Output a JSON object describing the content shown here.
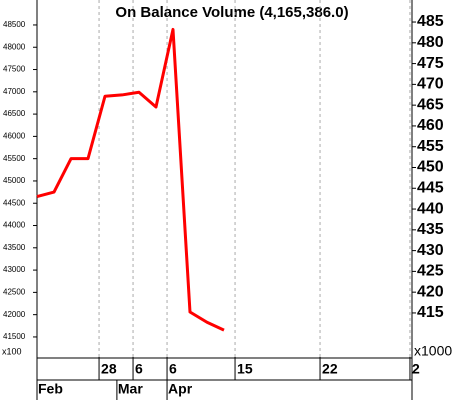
{
  "chart_data": {
    "type": "line",
    "title": "On Balance Volume (4,165,386.0)",
    "y_unit_label": "x100",
    "y2_unit_label": "x1000",
    "x": [
      0,
      1,
      2,
      3,
      4,
      5,
      6,
      7,
      8,
      9,
      10,
      11
    ],
    "series": [
      {
        "name": "On Balance Volume",
        "color": "#ff0000",
        "values": [
          44650,
          44750,
          45500,
          45500,
          46900,
          46930,
          46990,
          46660,
          48400,
          42060,
          41830,
          41654
        ]
      }
    ],
    "xlim": [
      0,
      22.06
    ],
    "xticks": [
      {
        "value": 3.65,
        "label": "28"
      },
      {
        "value": 5.65,
        "label": "6"
      },
      {
        "value": 7.65,
        "label": "6"
      },
      {
        "value": 11.65,
        "label": "15"
      },
      {
        "value": 16.65,
        "label": "22"
      },
      {
        "value": 21.94,
        "label": "2"
      }
    ],
    "month_ticks": [
      {
        "value": 0,
        "label": "Feb"
      },
      {
        "value": 4.7,
        "label": "Mar"
      },
      {
        "value": 7.65,
        "label": "Apr"
      }
    ],
    "ylim": [
      41050,
      49060
    ],
    "yticks": [
      41500,
      42000,
      42500,
      43000,
      43500,
      44000,
      44500,
      45000,
      45500,
      46000,
      46500,
      47000,
      47500,
      48000,
      48500
    ],
    "y2lim": [
      404.4,
      490.3
    ],
    "y2ticks": [
      415,
      420,
      425,
      430,
      435,
      440,
      445,
      450,
      455,
      460,
      465,
      470,
      475,
      480,
      485
    ],
    "grid": true
  }
}
